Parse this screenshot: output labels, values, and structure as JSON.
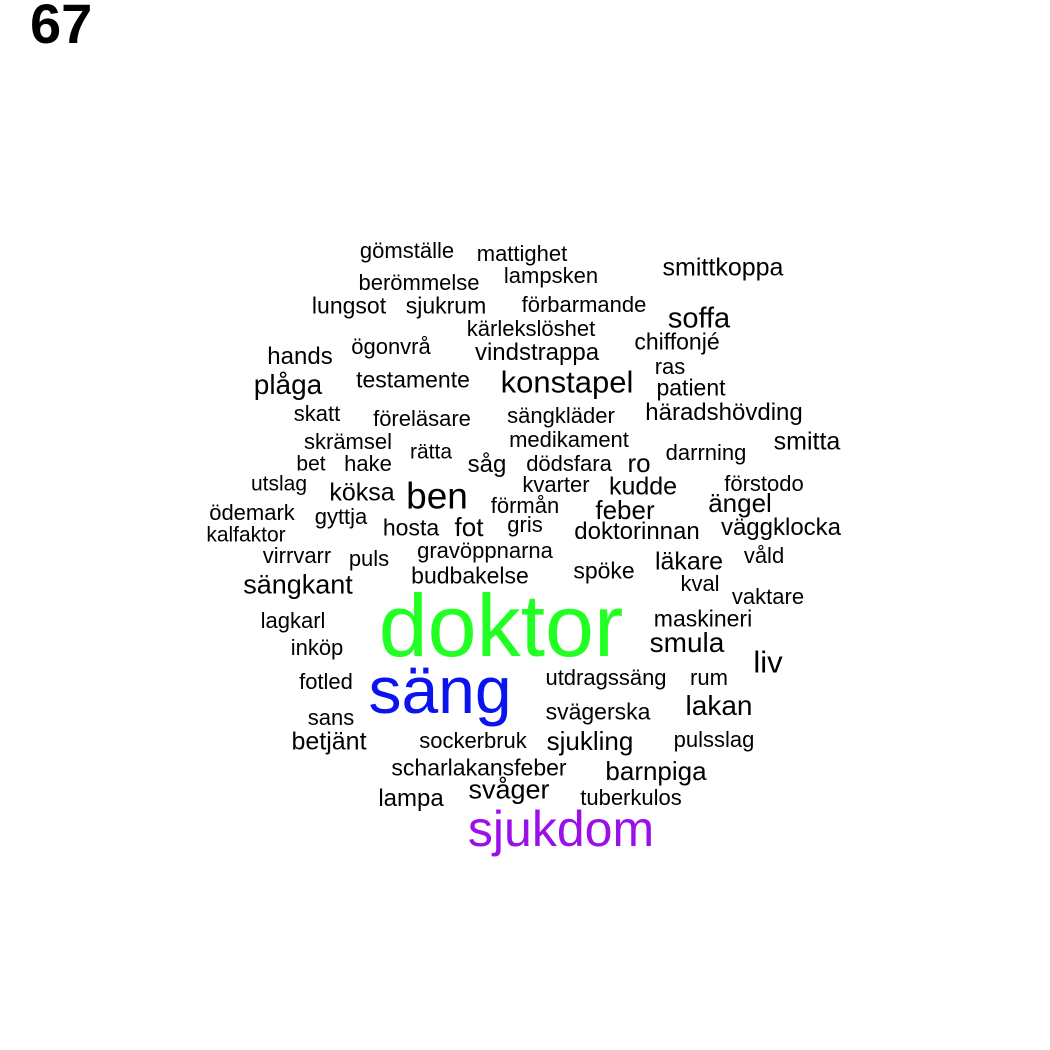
{
  "panel_number": "67",
  "colors": {
    "default_word": "#000000",
    "doktor": "#22ff22",
    "säng": "#0a14ee",
    "sjukdom": "#9b10e8"
  },
  "words": [
    {
      "text": "doktor",
      "color": "#22ff22"
    },
    {
      "text": "säng",
      "color": "#0a14ee"
    },
    {
      "text": "sjukdom",
      "color": "#9b10e8"
    },
    {
      "text": "gömställe"
    },
    {
      "text": "mattighet"
    },
    {
      "text": "smittkoppa"
    },
    {
      "text": "berömmelse"
    },
    {
      "text": "lampsken"
    },
    {
      "text": "lungsot"
    },
    {
      "text": "sjukrum"
    },
    {
      "text": "förbarmande"
    },
    {
      "text": "soffa"
    },
    {
      "text": "kärlekslöshet"
    },
    {
      "text": "chiffonjé"
    },
    {
      "text": "hands"
    },
    {
      "text": "ögonvrå"
    },
    {
      "text": "vindstrappa"
    },
    {
      "text": "ras"
    },
    {
      "text": "plåga"
    },
    {
      "text": "testamente"
    },
    {
      "text": "konstapel"
    },
    {
      "text": "patient"
    },
    {
      "text": "skatt"
    },
    {
      "text": "föreläsare"
    },
    {
      "text": "sängkläder"
    },
    {
      "text": "häradshövding"
    },
    {
      "text": "skrämsel"
    },
    {
      "text": "medikament"
    },
    {
      "text": "smitta"
    },
    {
      "text": "rätta"
    },
    {
      "text": "darrning"
    },
    {
      "text": "bet"
    },
    {
      "text": "hake"
    },
    {
      "text": "såg"
    },
    {
      "text": "dödsfara"
    },
    {
      "text": "ro"
    },
    {
      "text": "utslag"
    },
    {
      "text": "kvarter"
    },
    {
      "text": "kudde"
    },
    {
      "text": "förstodo"
    },
    {
      "text": "köksa"
    },
    {
      "text": "ben"
    },
    {
      "text": "förmån"
    },
    {
      "text": "ängel"
    },
    {
      "text": "ödemark"
    },
    {
      "text": "gyttja"
    },
    {
      "text": "feber"
    },
    {
      "text": "hosta"
    },
    {
      "text": "fot"
    },
    {
      "text": "gris"
    },
    {
      "text": "doktorinnan"
    },
    {
      "text": "väggklocka"
    },
    {
      "text": "kalfaktor"
    },
    {
      "text": "virrvarr"
    },
    {
      "text": "puls"
    },
    {
      "text": "gravöppnarna"
    },
    {
      "text": "våld"
    },
    {
      "text": "läkare"
    },
    {
      "text": "spöke"
    },
    {
      "text": "budbakelse"
    },
    {
      "text": "sängkant"
    },
    {
      "text": "kval"
    },
    {
      "text": "vaktare"
    },
    {
      "text": "lagkarl"
    },
    {
      "text": "maskineri"
    },
    {
      "text": "smula"
    },
    {
      "text": "inköp"
    },
    {
      "text": "liv"
    },
    {
      "text": "fotled"
    },
    {
      "text": "utdragssäng"
    },
    {
      "text": "rum"
    },
    {
      "text": "lakan"
    },
    {
      "text": "sans"
    },
    {
      "text": "svägerska"
    },
    {
      "text": "betjänt"
    },
    {
      "text": "sockerbruk"
    },
    {
      "text": "sjukling"
    },
    {
      "text": "pulsslag"
    },
    {
      "text": "scharlakansfeber"
    },
    {
      "text": "barnpiga"
    },
    {
      "text": "svåger"
    },
    {
      "text": "lampa"
    },
    {
      "text": "tuberkulos"
    }
  ]
}
